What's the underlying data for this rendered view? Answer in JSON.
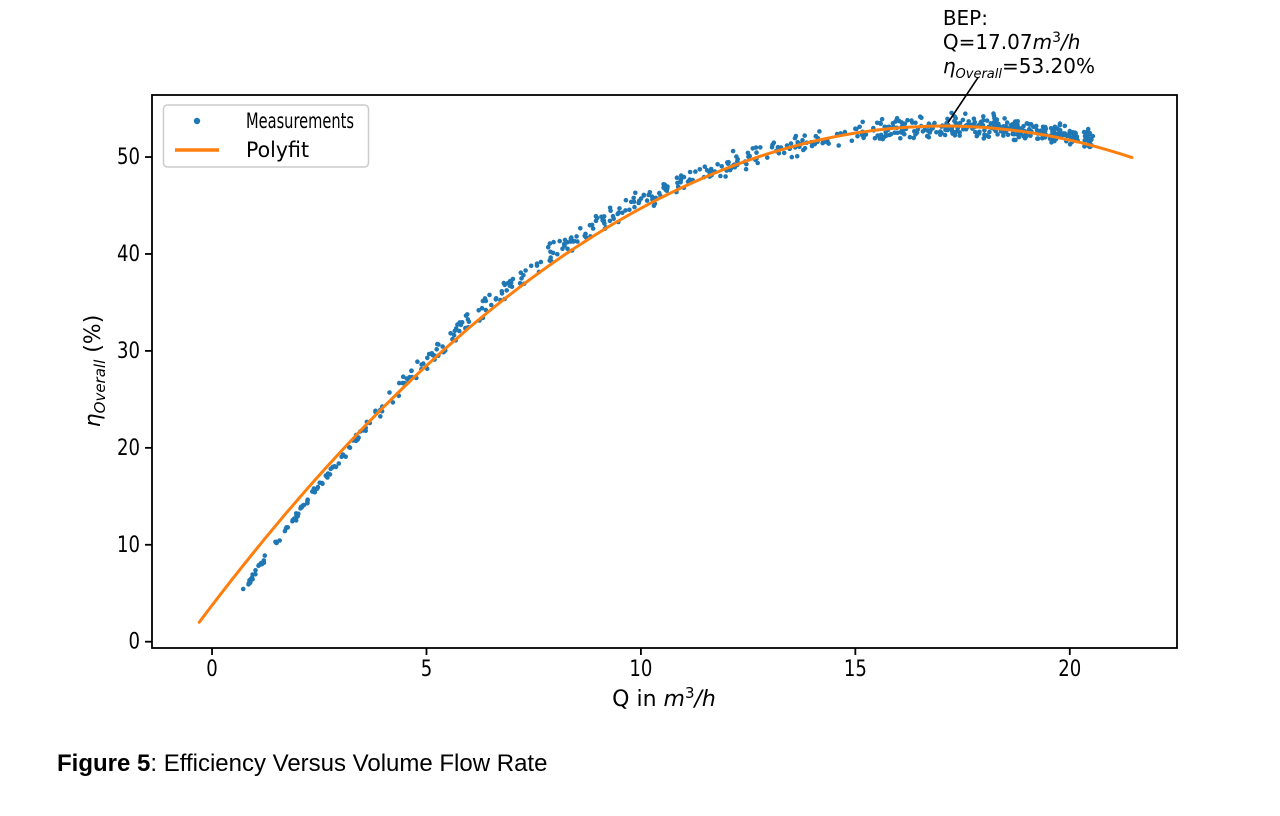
{
  "caption": {
    "label": "Figure 5",
    "text": ": Efficiency Versus Volume Flow Rate"
  },
  "chart_data": {
    "type": "scatter",
    "title": "",
    "xlabel_text": "Q in m³/h",
    "ylabel_text": "ηOverall (%)",
    "xlabel": {
      "plain": "Q in ",
      "unit_base": "m",
      "unit_exp": "3",
      "unit_rest": "/h"
    },
    "ylabel": {
      "symbol": "η",
      "subscript": "Overall",
      "rest": " (%)"
    },
    "x_ticks": [
      "0",
      "5",
      "10",
      "15",
      "20"
    ],
    "x_tick_values": [
      0,
      5,
      10,
      15,
      20
    ],
    "y_ticks": [
      "0",
      "10",
      "20",
      "30",
      "40",
      "50"
    ],
    "y_tick_values": [
      0,
      10,
      20,
      30,
      40,
      50
    ],
    "xlim": [
      -1.4,
      22.5
    ],
    "ylim": [
      -0.65,
      56.4
    ],
    "grid": false,
    "frame_color": "#000000",
    "legend": {
      "position": "upper left",
      "items": [
        {
          "label": "Measurements",
          "marker": "dot",
          "color": "#1f77b4"
        },
        {
          "label": "Polyfit",
          "marker": "line",
          "color": "#ff7f0e"
        }
      ]
    },
    "series": [
      {
        "name": "Measurements",
        "type": "scatter",
        "color": "#1f77b4",
        "marker_radius": 2.3,
        "trend": [
          [
            0.7,
            5.2
          ],
          [
            1.0,
            7.0
          ],
          [
            1.5,
            10.2
          ],
          [
            2.0,
            13.2
          ],
          [
            2.5,
            16.1
          ],
          [
            3.0,
            18.9
          ],
          [
            3.5,
            21.6
          ],
          [
            4.0,
            24.2
          ],
          [
            4.5,
            26.7
          ],
          [
            5.0,
            29.0
          ],
          [
            5.5,
            31.2
          ],
          [
            6.0,
            33.2
          ],
          [
            6.5,
            35.1
          ],
          [
            7.0,
            36.9
          ],
          [
            7.5,
            38.6
          ],
          [
            8.0,
            40.2
          ],
          [
            8.5,
            41.7
          ],
          [
            9.0,
            43.1
          ],
          [
            9.5,
            44.4
          ],
          [
            10.0,
            45.5
          ],
          [
            10.5,
            46.6
          ],
          [
            11.0,
            47.6
          ],
          [
            11.5,
            48.5
          ],
          [
            12.0,
            49.3
          ],
          [
            12.5,
            50.0
          ],
          [
            13.0,
            50.7
          ],
          [
            13.5,
            51.2
          ],
          [
            14.0,
            51.7
          ],
          [
            14.5,
            52.1
          ],
          [
            15.0,
            52.4
          ],
          [
            15.5,
            52.6
          ],
          [
            16.0,
            52.9
          ],
          [
            16.5,
            53.1
          ],
          [
            17.0,
            53.2
          ],
          [
            17.5,
            53.25
          ],
          [
            18.0,
            53.2
          ],
          [
            18.5,
            53.0
          ],
          [
            19.0,
            52.8
          ],
          [
            19.5,
            52.5
          ],
          [
            20.0,
            52.2
          ],
          [
            20.55,
            51.9
          ]
        ],
        "density_segments": [
          {
            "q0": 0.72,
            "q1": 1.25,
            "n": 22,
            "sd": 0.18
          },
          {
            "q0": 1.38,
            "q1": 2.6,
            "n": 40,
            "sd": 0.2
          },
          {
            "q0": 2.6,
            "q1": 4.0,
            "n": 36,
            "sd": 0.28
          },
          {
            "q0": 4.0,
            "q1": 6.5,
            "n": 60,
            "sd": 0.5
          },
          {
            "q0": 6.5,
            "q1": 9.0,
            "n": 62,
            "sd": 0.55
          },
          {
            "q0": 9.0,
            "q1": 12.0,
            "n": 80,
            "sd": 0.55
          },
          {
            "q0": 12.0,
            "q1": 15.5,
            "n": 90,
            "sd": 0.55
          },
          {
            "q0": 15.5,
            "q1": 18.3,
            "n": 150,
            "sd": 0.6
          },
          {
            "q0": 18.3,
            "q1": 20.55,
            "n": 170,
            "sd": 0.5
          }
        ],
        "noise_seed": 7,
        "q_range": [
          0.7,
          20.55
        ]
      },
      {
        "name": "Polyfit",
        "type": "line",
        "color": "#ff7f0e",
        "width": 3,
        "model": "eta = peak_eta + a*(q-peak_q)^2",
        "peak_q": 17.07,
        "peak_eta": 53.2,
        "a": -0.1697,
        "q_start": -0.3,
        "q_end": 21.55
      }
    ],
    "bep": {
      "q_m3_per_h": 17.07,
      "eta_overall_percent": 53.2
    },
    "annotation": {
      "title": "BEP:",
      "line2": {
        "prefix": " Q=",
        "value": "17.07",
        "unit_base": "m",
        "unit_exp": "3",
        "unit_rest": "/h"
      },
      "line3": {
        "prefix": " ",
        "symbol": "η",
        "subscript": "Overall",
        "rest": "=53.20%"
      },
      "text_q": 17.04,
      "leader": {
        "from": {
          "q": 17.86,
          "eta": 58.2
        },
        "to": {
          "q": 17.16,
          "eta": 53.55
        }
      }
    }
  }
}
